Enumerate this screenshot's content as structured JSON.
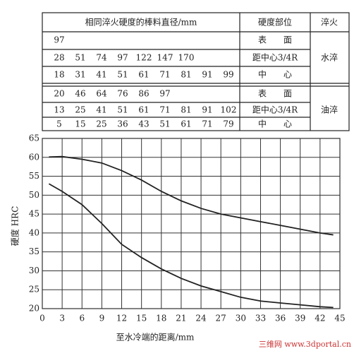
{
  "table": {
    "header": [
      "相同淬火硬度的棒料直径/mm",
      "硬度部位",
      "淬火"
    ],
    "groups": [
      {
        "quench": "水淬",
        "rows": [
          {
            "values": [
              97
            ],
            "position": "表　　面"
          },
          {
            "values": [
              28,
              51,
              74,
              97,
              122,
              147,
              170
            ],
            "position": "距中心3/4R"
          },
          {
            "values": [
              18,
              31,
              41,
              51,
              61,
              71,
              81,
              91,
              99
            ],
            "position": "中　　心"
          }
        ]
      },
      {
        "quench": "油淬",
        "rows": [
          {
            "values": [
              20,
              46,
              64,
              76,
              86,
              97
            ],
            "position": "表　　面"
          },
          {
            "values": [
              13,
              25,
              41,
              51,
              61,
              71,
              81,
              91,
              102
            ],
            "position": "距中心3/4R"
          },
          {
            "values": [
              5,
              15,
              25,
              36,
              43,
              51,
              61,
              71,
              79
            ],
            "position": "中　　心"
          }
        ]
      }
    ]
  },
  "chart_data": {
    "type": "line",
    "xlabel": "至水冷端的距离/mm",
    "ylabel": "硬度 HRC",
    "x": [
      1,
      3,
      6,
      9,
      12,
      15,
      18,
      21,
      24,
      27,
      30,
      33,
      36,
      39,
      42,
      44
    ],
    "series": [
      {
        "color": "#222222",
        "values": [
          60.1,
          60.2,
          59.5,
          58.5,
          56.5,
          54,
          51,
          48.5,
          46.5,
          45,
          44,
          43,
          42,
          41,
          40,
          39.5
        ]
      },
      {
        "color": "#222222",
        "values": [
          53,
          51,
          47.5,
          42.5,
          37,
          33.5,
          30.5,
          28,
          26,
          24.5,
          23,
          22,
          21.5,
          21,
          20.5,
          20.3
        ]
      }
    ],
    "xlim": [
      0,
      45
    ],
    "ylim": [
      20,
      65
    ],
    "xticks": [
      0,
      3,
      6,
      9,
      12,
      15,
      18,
      21,
      24,
      27,
      30,
      33,
      36,
      39,
      42,
      45
    ],
    "yticks": [
      20,
      25,
      30,
      35,
      40,
      45,
      50,
      55,
      60,
      65
    ],
    "grid": true
  },
  "watermark": "三维网 www.3dportal.cn"
}
